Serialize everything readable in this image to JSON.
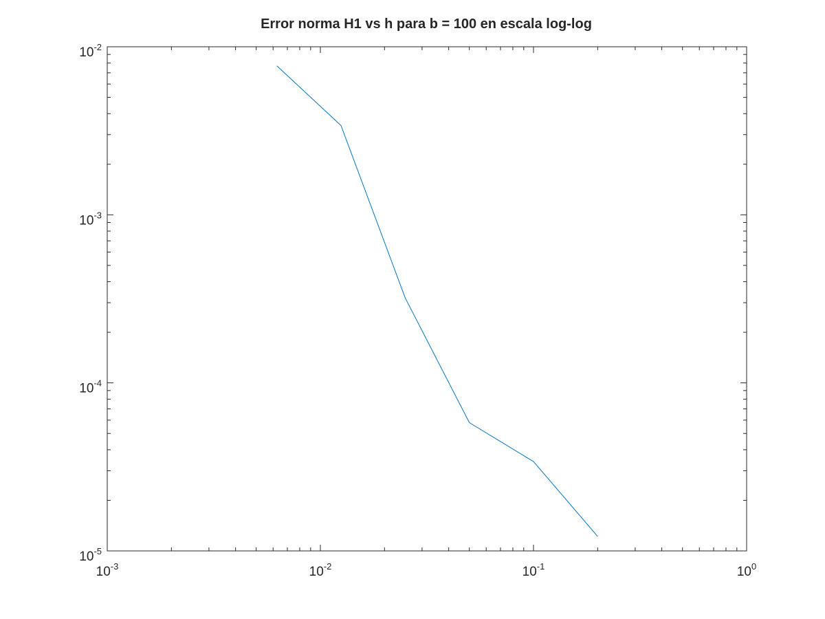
{
  "chart_data": {
    "type": "line",
    "title": "Error norma H1 vs h para b = 100 en escala log-log",
    "xlabel": "",
    "ylabel": "",
    "x_scale": "log",
    "y_scale": "log",
    "xlim": [
      0.001,
      1
    ],
    "ylim": [
      1e-05,
      0.01
    ],
    "grid": false,
    "x_ticks": [
      {
        "value": 0.001,
        "base": "10",
        "exp": "-3"
      },
      {
        "value": 0.01,
        "base": "10",
        "exp": "-2"
      },
      {
        "value": 0.1,
        "base": "10",
        "exp": "-1"
      },
      {
        "value": 1,
        "base": "10",
        "exp": "0"
      }
    ],
    "y_ticks": [
      {
        "value": 1e-05,
        "base": "10",
        "exp": "-5"
      },
      {
        "value": 0.0001,
        "base": "10",
        "exp": "-4"
      },
      {
        "value": 0.001,
        "base": "10",
        "exp": "-3"
      },
      {
        "value": 0.01,
        "base": "10",
        "exp": "-2"
      }
    ],
    "series": [
      {
        "color": "#0072bd",
        "x": [
          0.00625,
          0.0125,
          0.025,
          0.05,
          0.1,
          0.2
        ],
        "y": [
          0.0077,
          0.0034,
          0.00032,
          5.8e-05,
          3.4e-05,
          1.22e-05
        ]
      }
    ]
  }
}
